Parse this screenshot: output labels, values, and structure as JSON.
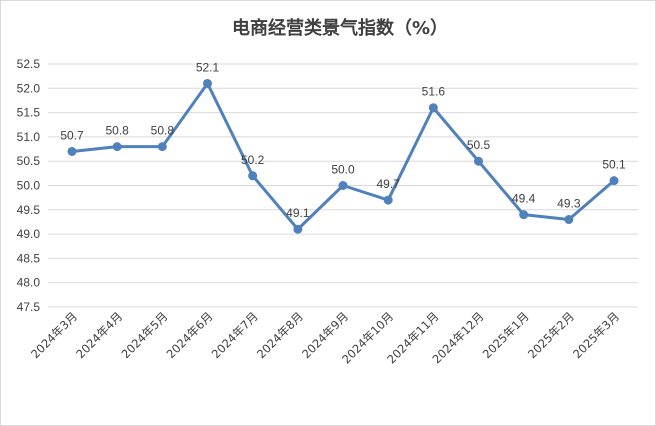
{
  "chart_data": {
    "type": "line",
    "title": "电商经营类景气指数（%）",
    "xlabel": "",
    "ylabel": "",
    "categories": [
      "2024年3月",
      "2024年4月",
      "2024年5月",
      "2024年6月",
      "2024年7月",
      "2024年8月",
      "2024年9月",
      "2024年10月",
      "2024年11月",
      "2024年12月",
      "2025年1月",
      "2025年2月",
      "2025年3月"
    ],
    "series": [
      {
        "values": [
          50.7,
          50.8,
          50.8,
          52.1,
          50.2,
          49.1,
          50.0,
          49.7,
          51.6,
          50.5,
          49.4,
          49.3,
          50.1
        ]
      }
    ],
    "data_labels": [
      "50.7",
      "50.8",
      "50.8",
      "52.1",
      "50.2",
      "49.1",
      "50.0",
      "49.7",
      "51.6",
      "50.5",
      "49.4",
      "49.3",
      "50.1"
    ],
    "ylim": [
      47.5,
      52.5
    ],
    "yticks": [
      "47.5",
      "48.0",
      "48.5",
      "49.0",
      "49.5",
      "50.0",
      "50.5",
      "51.0",
      "51.5",
      "52.0",
      "52.5"
    ],
    "grid": true,
    "legend": "none",
    "colors": {
      "line": "#4f81bd",
      "grid": "#d9d9d9",
      "text": "#404040"
    }
  }
}
